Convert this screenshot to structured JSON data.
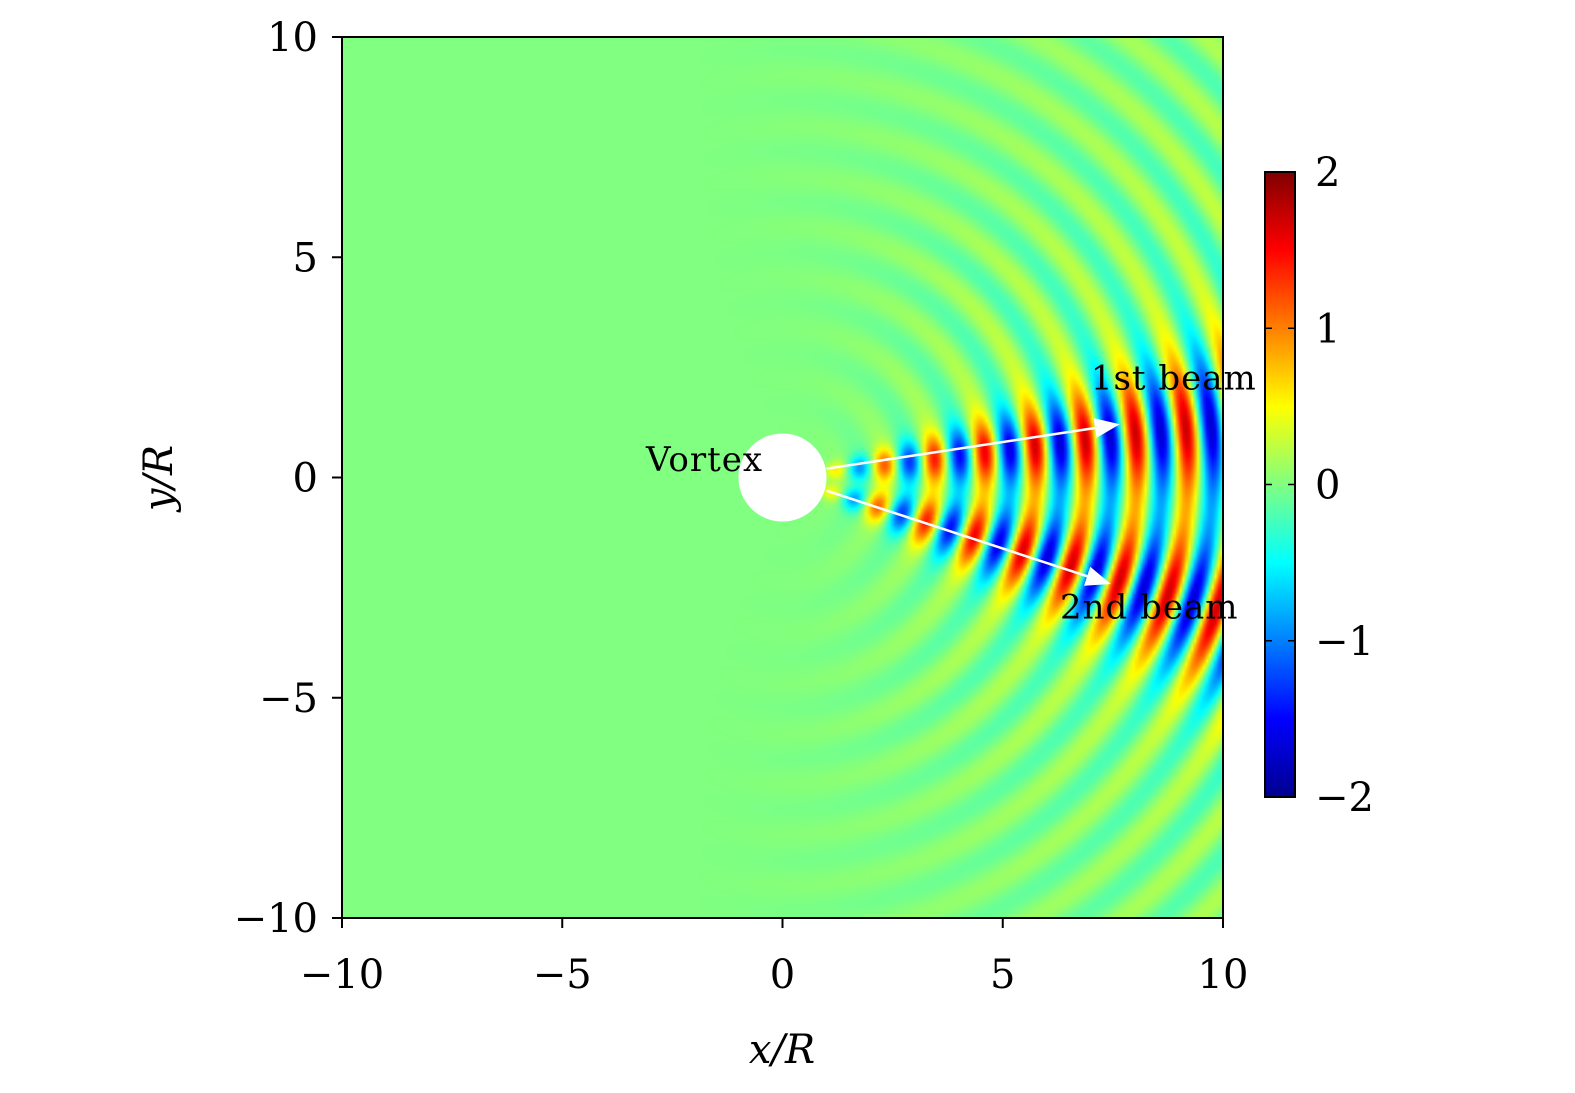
{
  "chart_data": {
    "type": "heatmap",
    "title": "",
    "xlabel": "x/R",
    "ylabel": "y/R",
    "xlim": [
      -10,
      10
    ],
    "ylim": [
      -10,
      10
    ],
    "xticks": [
      -10,
      -5,
      0,
      5,
      10
    ],
    "yticks": [
      -10,
      -5,
      0,
      5,
      10
    ],
    "xtick_labels": [
      "−10",
      "−5",
      "0",
      "5",
      "10"
    ],
    "ytick_labels": [
      "−10",
      "−5",
      "0",
      "5",
      "10"
    ],
    "colorbar": {
      "range": [
        -2,
        2
      ],
      "ticks": [
        2,
        1,
        0,
        -1,
        -2
      ],
      "tick_labels": [
        "2",
        "1",
        "0",
        "−1",
        "−2"
      ],
      "colormap": "jet",
      "colors": [
        "#00008f",
        "#0000ff",
        "#00ffff",
        "#80ff80",
        "#ffff00",
        "#ff0000",
        "#800000"
      ]
    },
    "vortex": {
      "x": 0,
      "y": 0,
      "radius": 1,
      "fill": "#ffffff"
    },
    "field": {
      "description_of_pattern": "wave fronts radiating from the vortex toward +x, split into two beams",
      "wavelength": 1.15,
      "beams": [
        {
          "angle_deg": 7,
          "amplitude": 2.0
        },
        {
          "angle_deg": -17,
          "amplitude": 2.0
        }
      ]
    },
    "annotations": [
      {
        "text": "Vortex",
        "x": -3.1,
        "y": 0.15
      },
      {
        "text": "1st beam",
        "x": 7.0,
        "y": 2.0
      },
      {
        "text": "2nd beam",
        "x": 6.3,
        "y": -3.2
      }
    ],
    "arrows": [
      {
        "name": "1st beam",
        "from": [
          1.0,
          0.2
        ],
        "to": [
          7.6,
          1.2
        ]
      },
      {
        "name": "2nd beam",
        "from": [
          1.0,
          -0.3
        ],
        "to": [
          7.4,
          -2.4
        ]
      }
    ]
  }
}
